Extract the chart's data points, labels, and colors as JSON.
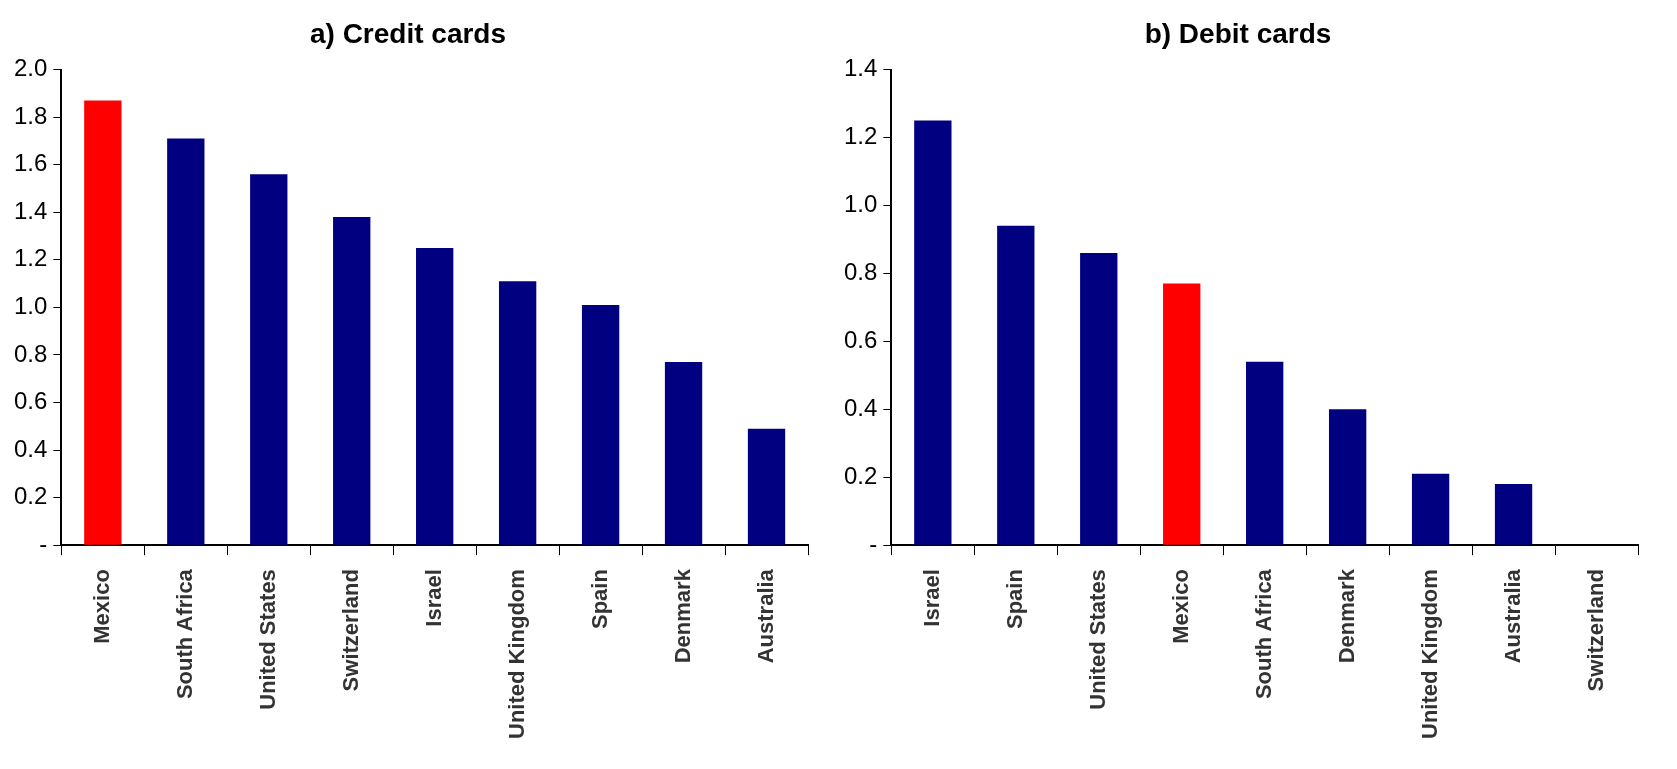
{
  "chart_data": [
    {
      "type": "bar",
      "title": "a) Credit cards",
      "categories": [
        "Mexico",
        "South Africa",
        "United States",
        "Switzerland",
        "Israel",
        "United Kingdom",
        "Spain",
        "Denmark",
        "Australia"
      ],
      "values": [
        1.87,
        1.71,
        1.56,
        1.38,
        1.25,
        1.11,
        1.01,
        0.77,
        0.49
      ],
      "colors": [
        "#ff0000",
        "#000080",
        "#000080",
        "#000080",
        "#000080",
        "#000080",
        "#000080",
        "#000080",
        "#000080"
      ],
      "ylim": [
        0,
        2.0
      ],
      "yticks": [
        {
          "value": 0,
          "label": "-"
        },
        0.2,
        0.4,
        0.6,
        0.8,
        {
          "value": 1,
          "label": "1.0"
        },
        1.2,
        1.4,
        1.6,
        1.8,
        {
          "value": 2,
          "label": "2.0"
        }
      ],
      "grid": false,
      "legend": false
    },
    {
      "type": "bar",
      "title": "b) Debit cards",
      "categories": [
        "Israel",
        "Spain",
        "United States",
        "Mexico",
        "South Africa",
        "Denmark",
        "United Kingdom",
        "Australia",
        "Switzerland"
      ],
      "values": [
        1.25,
        0.94,
        0.86,
        0.77,
        0.54,
        0.4,
        0.21,
        0.18,
        0
      ],
      "colors": [
        "#000080",
        "#000080",
        "#000080",
        "#ff0000",
        "#000080",
        "#000080",
        "#000080",
        "#000080",
        "#000080"
      ],
      "ylim": [
        0,
        1.4
      ],
      "yticks": [
        {
          "value": 0,
          "label": "-"
        },
        0.2,
        0.4,
        0.6,
        0.8,
        {
          "value": 1,
          "label": "1.0"
        },
        1.2,
        1.4
      ],
      "grid": false,
      "legend": false
    }
  ]
}
